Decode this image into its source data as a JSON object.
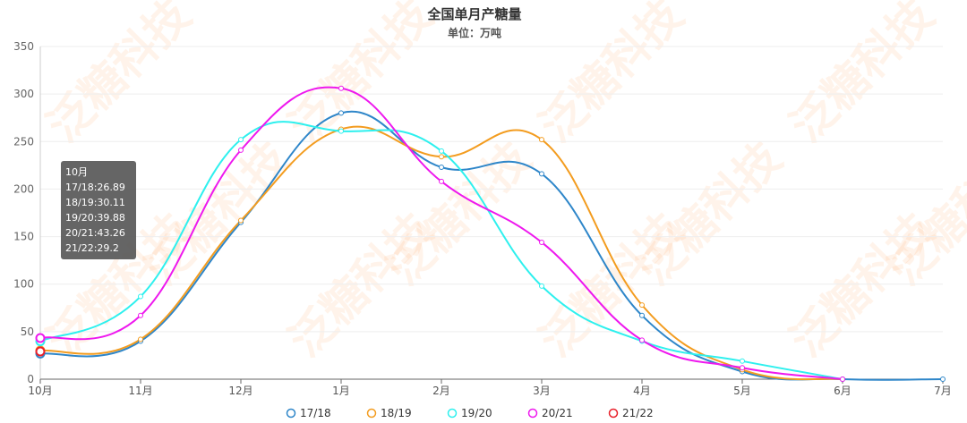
{
  "watermark": {
    "text": "泛糖科技"
  },
  "tooltip": {
    "title": "10月",
    "lines": [
      "17/18:26.89",
      "18/19:30.11",
      "19/20:39.88",
      "20/21:43.26",
      "21/22:29.2"
    ]
  },
  "chart_data": {
    "type": "line",
    "title": "全国单月产糖量",
    "subtitle": "单位：万吨",
    "categories": [
      "10月",
      "11月",
      "12月",
      "1月",
      "2月",
      "3月",
      "4月",
      "5月",
      "6月",
      "7月"
    ],
    "y_ticks": [
      "0",
      "50",
      "100",
      "150",
      "200",
      "250",
      "300",
      "350"
    ],
    "ylim": [
      0,
      350
    ],
    "grid": true,
    "legend_position": "bottom",
    "series": [
      {
        "name": "17/18",
        "color": "#2e86c9",
        "values": [
          26.89,
          40,
          165,
          280,
          223,
          216,
          67,
          8,
          0,
          0
        ]
      },
      {
        "name": "18/19",
        "color": "#f39c1f",
        "values": [
          30.11,
          42,
          167,
          263,
          234,
          252,
          78,
          10,
          0,
          null
        ]
      },
      {
        "name": "19/20",
        "color": "#2ef0ee",
        "values": [
          39.88,
          87,
          252,
          261,
          240,
          98,
          40,
          19,
          0,
          null
        ]
      },
      {
        "name": "20/21",
        "color": "#ee18ee",
        "values": [
          43.26,
          67,
          241,
          306,
          208,
          144,
          41,
          12,
          0,
          null
        ]
      },
      {
        "name": "21/22",
        "color": "#e8202a",
        "values": [
          29.2,
          null,
          null,
          null,
          null,
          null,
          null,
          null,
          null,
          null
        ]
      }
    ]
  }
}
